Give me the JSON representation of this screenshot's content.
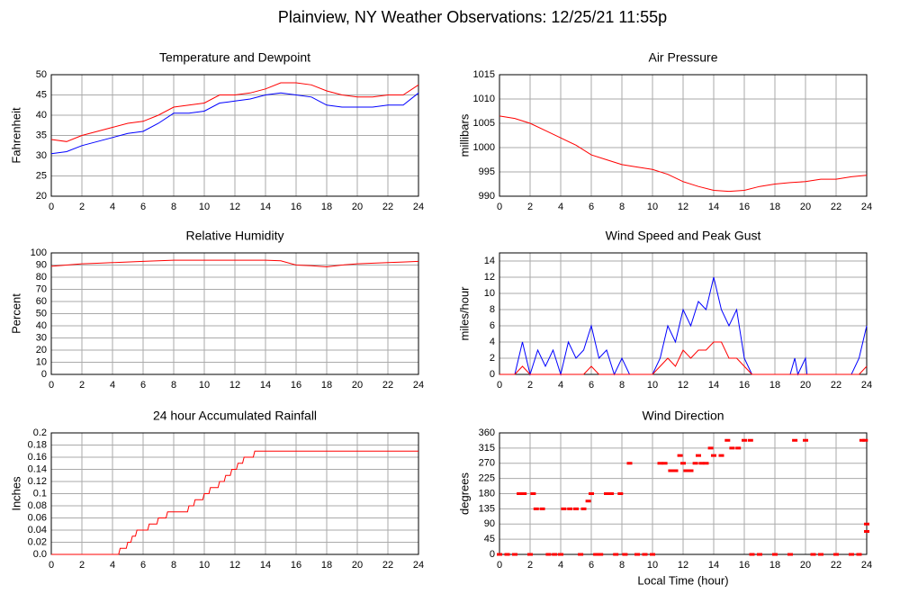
{
  "title": "Plainview, NY Weather Observations: 12/25/21 11:55p",
  "chart_data": [
    {
      "type": "line",
      "title": "Temperature and Dewpoint",
      "y_label": "Fahrenheit",
      "x": [
        0,
        1,
        2,
        3,
        4,
        5,
        6,
        7,
        8,
        9,
        10,
        11,
        12,
        13,
        14,
        15,
        16,
        17,
        18,
        19,
        20,
        21,
        22,
        23,
        24
      ],
      "series": [
        {
          "color": "#ff0000",
          "values": [
            34,
            33.5,
            35,
            36,
            37,
            38,
            38.5,
            40,
            42,
            42.5,
            43,
            45,
            45,
            45.5,
            46.5,
            48,
            48,
            47.5,
            46,
            45,
            44.5,
            44.5,
            45,
            45,
            47.5
          ]
        },
        {
          "color": "#0000ff",
          "values": [
            30.5,
            31,
            32.5,
            33.5,
            34.5,
            35.5,
            36,
            38,
            40.5,
            40.5,
            41,
            43,
            43.5,
            44,
            45,
            45.5,
            45,
            44.5,
            42.5,
            42,
            42,
            42,
            42.5,
            42.5,
            45.5
          ]
        }
      ],
      "xlim": [
        0,
        24
      ],
      "xticks": [
        0,
        2,
        4,
        6,
        8,
        10,
        12,
        14,
        16,
        18,
        20,
        22,
        24
      ],
      "ylim": [
        20,
        50
      ],
      "yticks": [
        20,
        25,
        30,
        35,
        40,
        45,
        50
      ],
      "grid": true
    },
    {
      "type": "line",
      "title": "Air Pressure",
      "y_label": "millibars",
      "x": [
        0,
        1,
        2,
        3,
        4,
        5,
        6,
        7,
        8,
        9,
        10,
        11,
        12,
        13,
        14,
        15,
        16,
        17,
        18,
        19,
        20,
        21,
        22,
        23,
        24
      ],
      "series": [
        {
          "color": "#ff0000",
          "values": [
            1006.5,
            1006,
            1005,
            1003.5,
            1002,
            1000.5,
            998.5,
            997.5,
            996.5,
            996,
            995.5,
            994.5,
            993,
            992,
            991.2,
            991,
            991.2,
            992,
            992.5,
            992.8,
            993,
            993.5,
            993.5,
            994,
            994.3
          ]
        }
      ],
      "xlim": [
        0,
        24
      ],
      "xticks": [
        0,
        2,
        4,
        6,
        8,
        10,
        12,
        14,
        16,
        18,
        20,
        22,
        24
      ],
      "ylim": [
        990,
        1015
      ],
      "yticks": [
        990,
        995,
        1000,
        1005,
        1010,
        1015
      ],
      "grid": true
    },
    {
      "type": "line",
      "title": "Relative Humidity",
      "y_label": "Percent",
      "x": [
        0,
        1,
        2,
        3,
        4,
        6,
        8,
        10,
        12,
        14,
        15,
        16,
        17,
        18,
        19,
        20,
        22,
        23,
        24
      ],
      "series": [
        {
          "color": "#ff0000",
          "values": [
            89,
            90,
            91,
            91.5,
            92,
            93,
            94,
            94,
            94,
            94,
            93.5,
            90,
            89.5,
            88.5,
            90,
            91,
            92,
            92.5,
            93
          ]
        }
      ],
      "xlim": [
        0,
        24
      ],
      "xticks": [
        0,
        2,
        4,
        6,
        8,
        10,
        12,
        14,
        16,
        18,
        20,
        22,
        24
      ],
      "ylim": [
        0,
        100
      ],
      "yticks": [
        0,
        10,
        20,
        30,
        40,
        50,
        60,
        70,
        80,
        90,
        100
      ],
      "grid": true
    },
    {
      "type": "line",
      "title": "Wind Speed and Peak Gust",
      "y_label": "miles/hour",
      "x": [
        0,
        1,
        1.5,
        2,
        2.5,
        3,
        3.5,
        4,
        4.5,
        5,
        5.5,
        6,
        6.5,
        7,
        7.5,
        8,
        8.5,
        10,
        10.5,
        11,
        11.5,
        12,
        12.5,
        13,
        13.5,
        14,
        14.5,
        15,
        15.5,
        16,
        16.5,
        19,
        19.3,
        19.5,
        20,
        20.1,
        23,
        23.5,
        24
      ],
      "series": [
        {
          "color": "#0000ff",
          "values": [
            0,
            0,
            4,
            0,
            3,
            1,
            3,
            0,
            4,
            2,
            3,
            6,
            2,
            3,
            0,
            2,
            0,
            0,
            2,
            6,
            4,
            8,
            6,
            9,
            8,
            12,
            8,
            6,
            8,
            2,
            0,
            0,
            2,
            0,
            2,
            0,
            0,
            2,
            6
          ]
        },
        {
          "color": "#ff0000",
          "values": [
            0,
            0,
            1,
            0,
            0,
            0,
            0,
            0,
            0,
            0,
            0,
            1,
            0,
            0,
            0,
            0,
            0,
            0,
            1,
            2,
            1,
            3,
            2,
            3,
            3,
            4,
            4,
            2,
            2,
            1,
            0,
            0,
            0,
            0,
            0,
            0,
            0,
            0,
            1
          ]
        }
      ],
      "xlim": [
        0,
        24
      ],
      "xticks": [
        0,
        2,
        4,
        6,
        8,
        10,
        12,
        14,
        16,
        18,
        20,
        22,
        24
      ],
      "ylim": [
        0,
        15
      ],
      "yticks": [
        0,
        2,
        4,
        6,
        8,
        10,
        12,
        14
      ],
      "grid": true
    },
    {
      "type": "line",
      "title": "24 hour Accumulated Rainfall",
      "y_label": "Inches",
      "x": [
        0,
        4.4,
        4.5,
        4.9,
        5.0,
        5.2,
        5.3,
        5.5,
        5.6,
        6.3,
        6.4,
        6.9,
        7.0,
        7.5,
        7.6,
        8.9,
        9.0,
        9.3,
        9.4,
        9.9,
        10.0,
        10.3,
        10.4,
        10.9,
        11.0,
        11.3,
        11.4,
        11.7,
        11.8,
        12.1,
        12.2,
        12.5,
        12.6,
        13.2,
        13.3,
        24
      ],
      "series": [
        {
          "color": "#ff0000",
          "values": [
            0,
            0,
            0.01,
            0.01,
            0.02,
            0.02,
            0.03,
            0.03,
            0.04,
            0.04,
            0.05,
            0.05,
            0.06,
            0.06,
            0.07,
            0.07,
            0.08,
            0.08,
            0.09,
            0.09,
            0.1,
            0.1,
            0.11,
            0.11,
            0.12,
            0.12,
            0.13,
            0.13,
            0.14,
            0.14,
            0.15,
            0.15,
            0.16,
            0.16,
            0.17,
            0.17
          ]
        }
      ],
      "xlim": [
        0,
        24
      ],
      "xticks": [
        0,
        2,
        4,
        6,
        8,
        10,
        12,
        14,
        16,
        18,
        20,
        22,
        24
      ],
      "ylim": [
        0,
        0.2
      ],
      "yticks": [
        {
          "value": 0,
          "label": "0.0"
        },
        0.02,
        0.04,
        0.06,
        0.08,
        0.1,
        0.12,
        0.14,
        0.16,
        0.18,
        0.2
      ],
      "grid": true
    },
    {
      "type": "scatter",
      "title": "Wind Direction",
      "y_label": "degrees",
      "x_label": "Local Time (hour)",
      "color": "#ff0000",
      "x": [
        0,
        0.5,
        1,
        1.3,
        1.6,
        2.0,
        2.2,
        2.4,
        2.8,
        3.2,
        3.6,
        4.0,
        4.2,
        4.6,
        5.0,
        5.3,
        5.5,
        5.8,
        6.0,
        6.3,
        6.6,
        7.0,
        7.3,
        7.6,
        7.9,
        8.2,
        8.5,
        9.0,
        9.5,
        10.0,
        10.5,
        10.8,
        11.2,
        11.5,
        11.8,
        12.0,
        12.2,
        12.5,
        12.8,
        13.0,
        13.2,
        13.5,
        13.8,
        14.0,
        14.5,
        14.9,
        15.2,
        15.6,
        16.0,
        16.4,
        16.5,
        17,
        18,
        19,
        19.3,
        20,
        20.5,
        21,
        22,
        23,
        23.5,
        23.7,
        23.9,
        24,
        24
      ],
      "values": [
        0,
        0,
        0,
        180,
        180,
        0,
        180,
        135,
        135,
        0,
        0,
        0,
        135,
        135,
        135,
        0,
        135,
        158,
        180,
        0,
        0,
        180,
        180,
        0,
        180,
        0,
        270,
        0,
        0,
        0,
        270,
        270,
        248,
        248,
        293,
        270,
        248,
        248,
        270,
        293,
        270,
        270,
        315,
        293,
        293,
        338,
        315,
        315,
        338,
        338,
        0,
        0,
        0,
        0,
        338,
        338,
        0,
        0,
        0,
        0,
        0,
        338,
        338,
        90,
        68
      ],
      "xlim": [
        0,
        24
      ],
      "xticks": [
        0,
        2,
        4,
        6,
        8,
        10,
        12,
        14,
        16,
        18,
        20,
        22,
        24
      ],
      "ylim": [
        0,
        360
      ],
      "yticks": [
        0,
        45,
        90,
        135,
        180,
        225,
        270,
        315,
        360
      ],
      "grid": true
    }
  ]
}
